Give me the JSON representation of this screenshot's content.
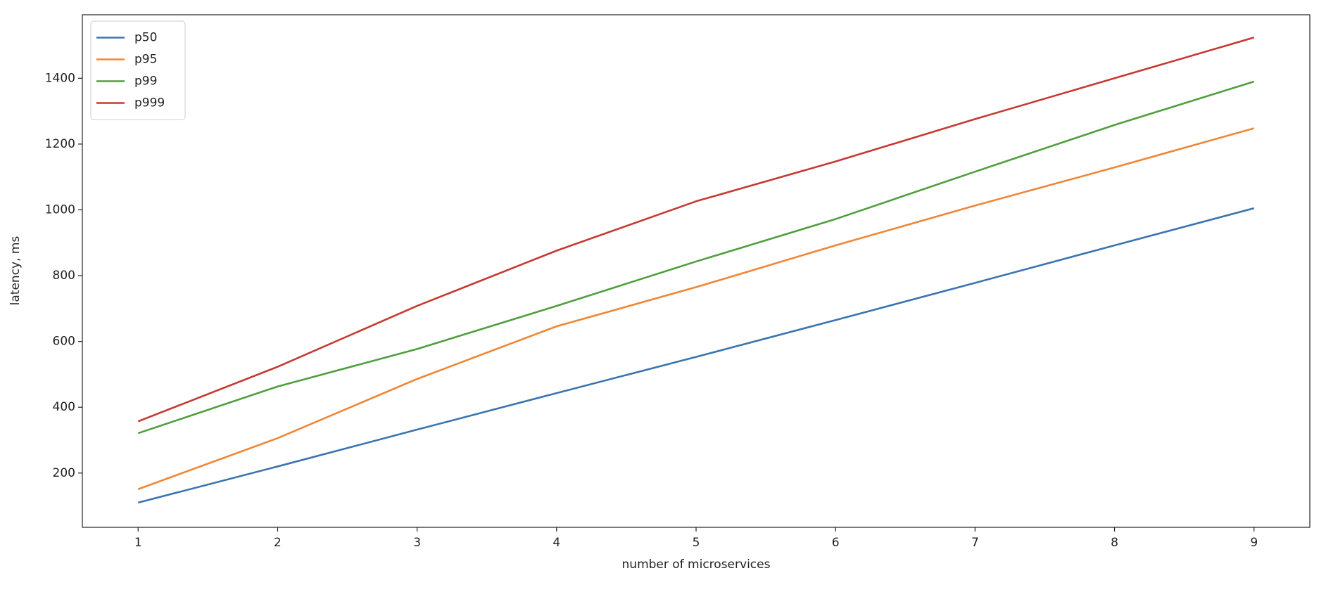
{
  "chart_data": {
    "type": "line",
    "xlabel": "number of microservices",
    "ylabel": "latency, ms",
    "x": [
      1,
      2,
      3,
      4,
      5,
      6,
      7,
      8,
      9
    ],
    "series": [
      {
        "name": "p50",
        "color": "#3b75af",
        "values": [
          110,
          220,
          332,
          443,
          553,
          665,
          778,
          892,
          1005
        ]
      },
      {
        "name": "p95",
        "color": "#ef8636",
        "values": [
          151,
          306,
          486,
          646,
          765,
          892,
          1013,
          1129,
          1248
        ]
      },
      {
        "name": "p99",
        "color": "#519e3e",
        "values": [
          321,
          463,
          577,
          708,
          843,
          972,
          1116,
          1258,
          1390
        ]
      },
      {
        "name": "p999",
        "color": "#c53a32",
        "values": [
          357,
          523,
          708,
          876,
          1026,
          1147,
          1276,
          1400,
          1524
        ]
      }
    ],
    "xlim": [
      0.6,
      9.4
    ],
    "xticks": [
      1,
      2,
      3,
      4,
      5,
      6,
      7,
      8,
      9
    ],
    "ylim": [
      35,
      1593
    ],
    "yticks": [
      200,
      400,
      600,
      800,
      1000,
      1200,
      1400
    ],
    "legend": "upper left",
    "grid": false
  }
}
